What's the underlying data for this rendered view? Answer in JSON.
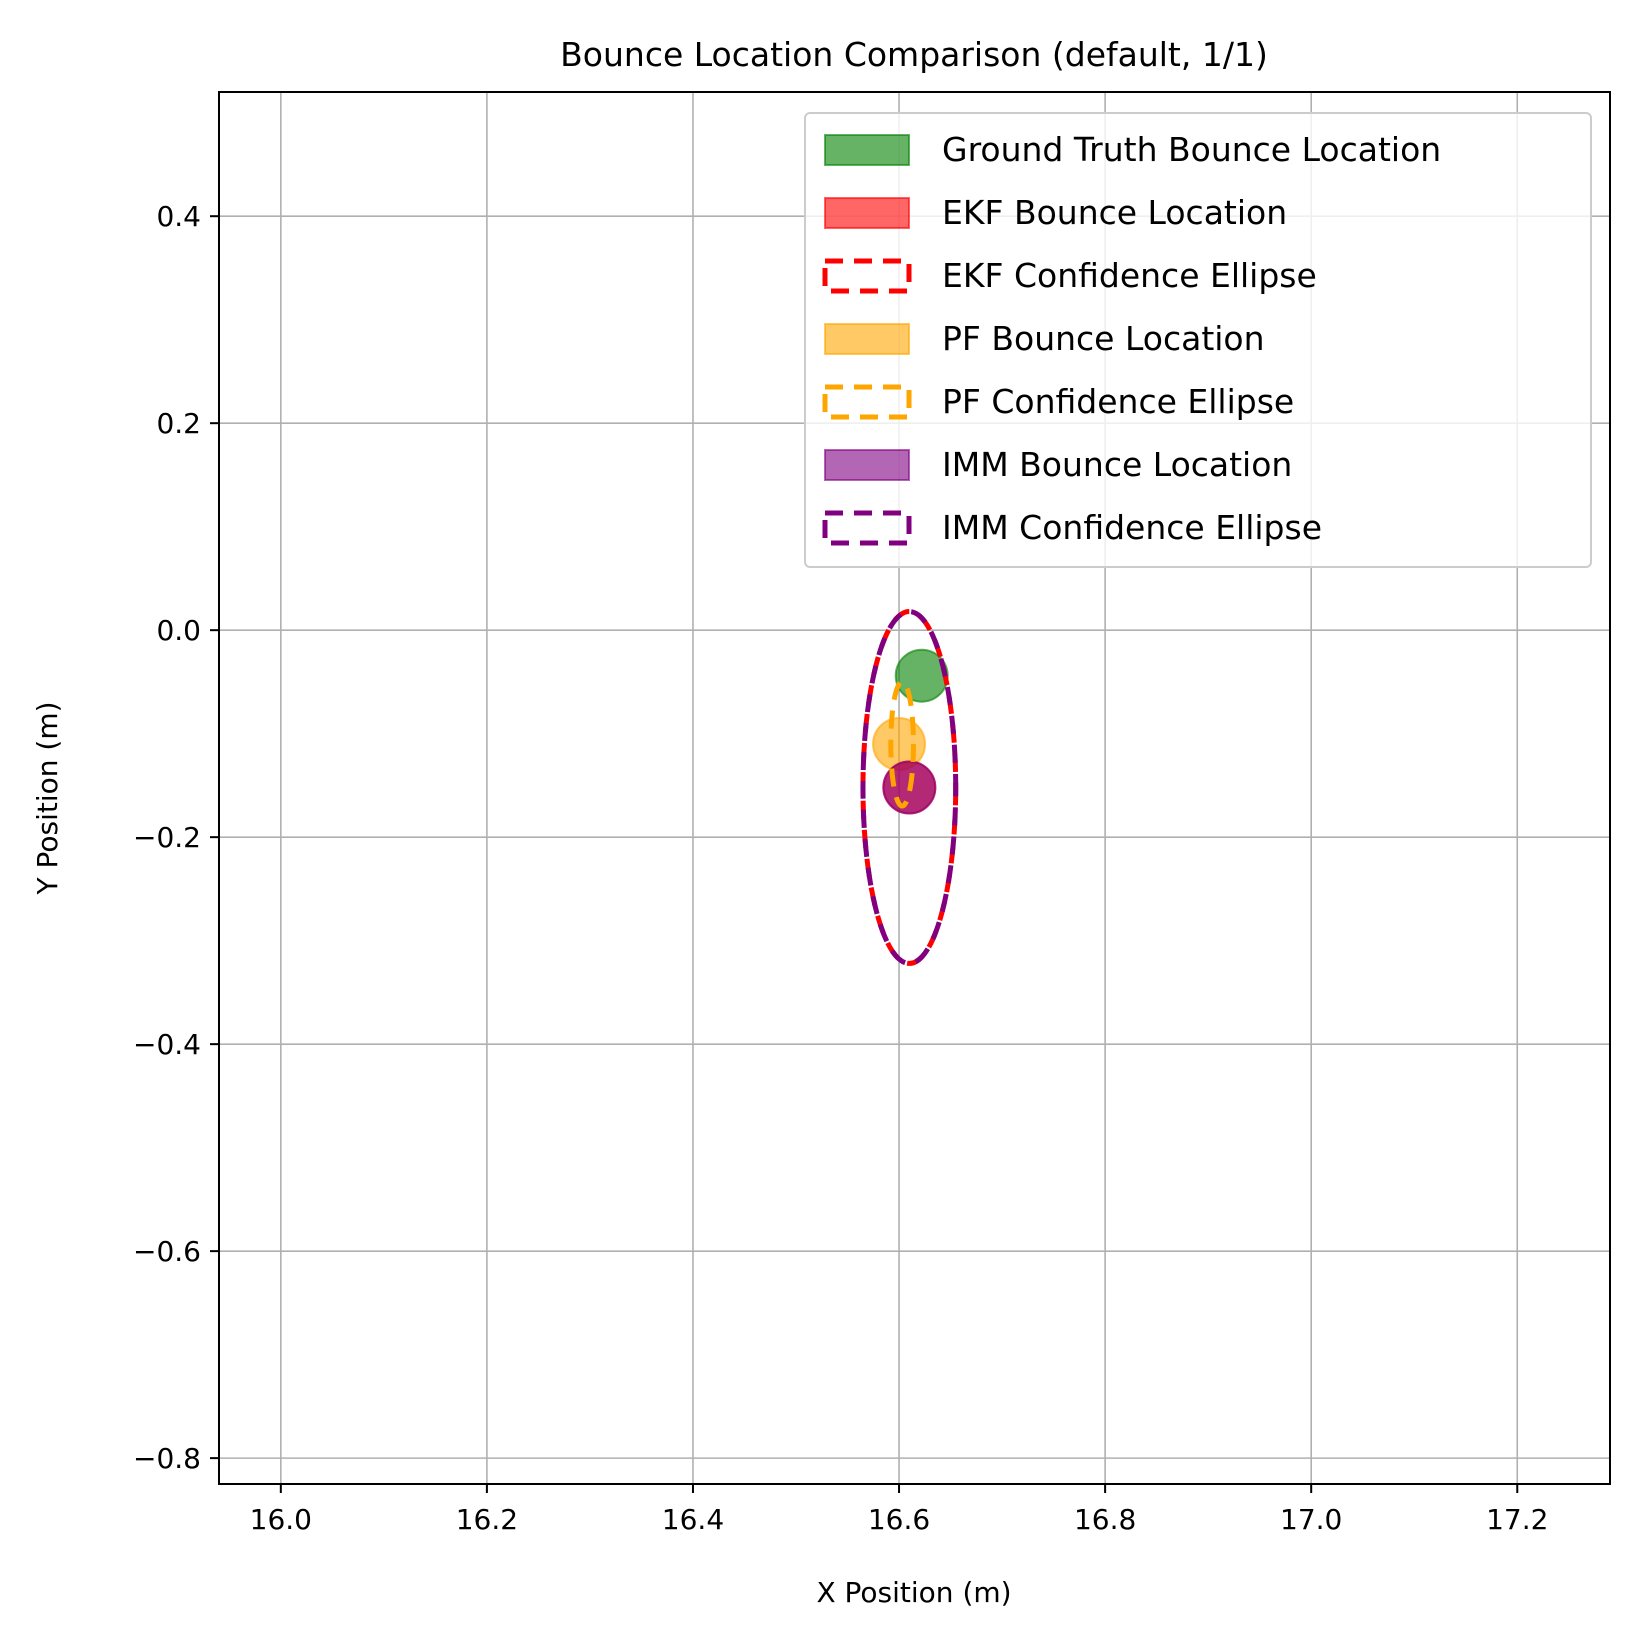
{
  "chart_data": {
    "type": "scatter",
    "title": "Bounce Location Comparison (default, 1/1)",
    "xlabel": "X Position (m)",
    "ylabel": "Y Position (m)",
    "xlim": [
      15.94,
      17.29
    ],
    "ylim": [
      -0.825,
      0.52
    ],
    "x_ticks": [
      16.0,
      16.2,
      16.4,
      16.6,
      16.8,
      17.0,
      17.2
    ],
    "x_tick_labels": [
      "16.0",
      "16.2",
      "16.4",
      "16.6",
      "16.8",
      "17.0",
      "17.2"
    ],
    "y_ticks": [
      0.4,
      0.2,
      0.0,
      -0.2,
      -0.4,
      -0.6,
      -0.8
    ],
    "y_tick_labels": [
      "0.4",
      "0.2",
      "0.0",
      "−0.2",
      "−0.4",
      "−0.6",
      "−0.8"
    ],
    "grid": true,
    "legend_position": "top-right",
    "points": [
      {
        "name": "Ground Truth Bounce Location",
        "x": 16.622,
        "y": -0.044,
        "color": "#008000"
      },
      {
        "name": "EKF Bounce Location",
        "x": 16.61,
        "y": -0.152,
        "color": "#ff0000"
      },
      {
        "name": "PF Bounce Location",
        "x": 16.6,
        "y": -0.11,
        "color": "#ffa500"
      },
      {
        "name": "IMM Bounce Location",
        "x": 16.61,
        "y": -0.152,
        "color": "#800080"
      }
    ],
    "ellipses": [
      {
        "name": "EKF Confidence Ellipse",
        "cx": 16.61,
        "cy": -0.152,
        "rx": 0.045,
        "ry": 0.17,
        "color": "#ff0000"
      },
      {
        "name": "PF Confidence Ellipse",
        "cx": 16.603,
        "cy": -0.11,
        "rx": 0.011,
        "ry": 0.06,
        "color": "#ffa500"
      },
      {
        "name": "IMM Confidence Ellipse",
        "cx": 16.61,
        "cy": -0.152,
        "rx": 0.045,
        "ry": 0.17,
        "color": "#800080"
      }
    ],
    "legend": [
      {
        "label": "Ground Truth Bounce Location",
        "style": "filled",
        "color": "#008000"
      },
      {
        "label": "EKF Bounce Location",
        "style": "filled",
        "color": "#ff0000"
      },
      {
        "label": "EKF Confidence Ellipse",
        "style": "dashed",
        "color": "#ff0000"
      },
      {
        "label": "PF Bounce Location",
        "style": "filled",
        "color": "#ffa500"
      },
      {
        "label": "PF Confidence Ellipse",
        "style": "dashed",
        "color": "#ffa500"
      },
      {
        "label": "IMM Bounce Location",
        "style": "filled",
        "color": "#800080"
      },
      {
        "label": "IMM Confidence Ellipse",
        "style": "dashed",
        "color": "#800080"
      }
    ]
  }
}
